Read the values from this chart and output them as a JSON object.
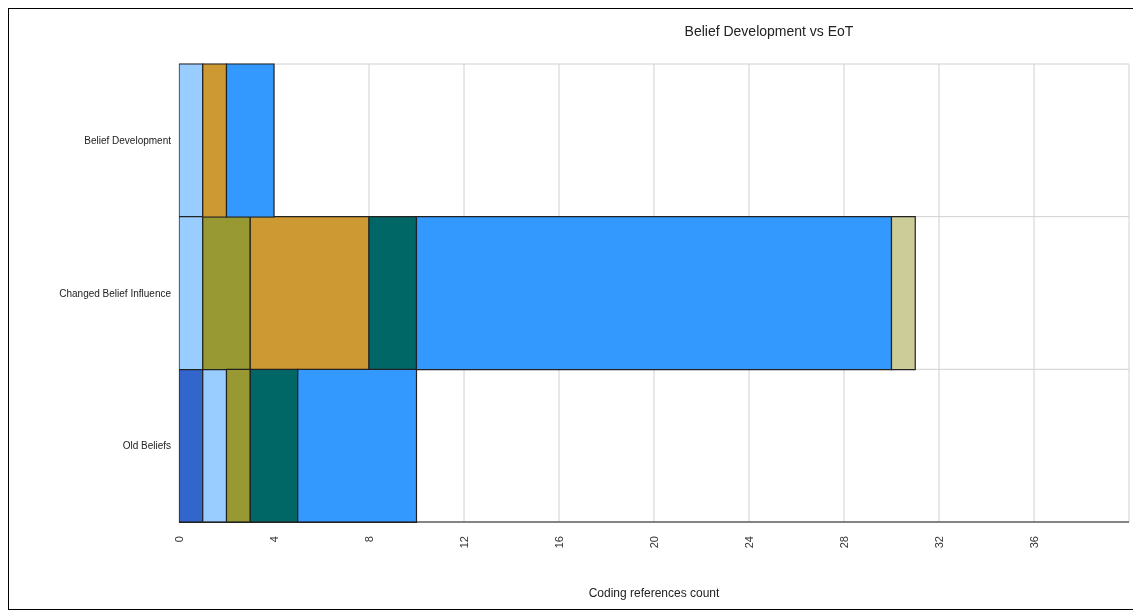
{
  "chart_data": {
    "type": "bar",
    "orientation": "horizontal",
    "stacked": true,
    "title": "Belief Development vs EoT",
    "xlabel": "Coding references count",
    "categories": [
      "Belief Development",
      "Changed Belief Influence",
      "Old Beliefs"
    ],
    "series": [
      {
        "color": "#3366cc",
        "values": [
          null,
          null,
          1
        ]
      },
      {
        "color": "#99ccff",
        "values": [
          1,
          1,
          1
        ]
      },
      {
        "color": "#999933",
        "values": [
          null,
          2,
          1
        ]
      },
      {
        "color": "#cc9933",
        "values": [
          1,
          5,
          null
        ]
      },
      {
        "color": "#006666",
        "values": [
          null,
          2,
          2
        ]
      },
      {
        "color": "#3399ff",
        "values": [
          2,
          20,
          5
        ]
      },
      {
        "color": "#cccc99",
        "values": [
          null,
          1,
          null
        ]
      }
    ],
    "xlim": [
      0,
      40
    ],
    "xticks": [
      0,
      4,
      8,
      12,
      16,
      20,
      24,
      28,
      32,
      36
    ],
    "grid": true,
    "legend": false
  }
}
